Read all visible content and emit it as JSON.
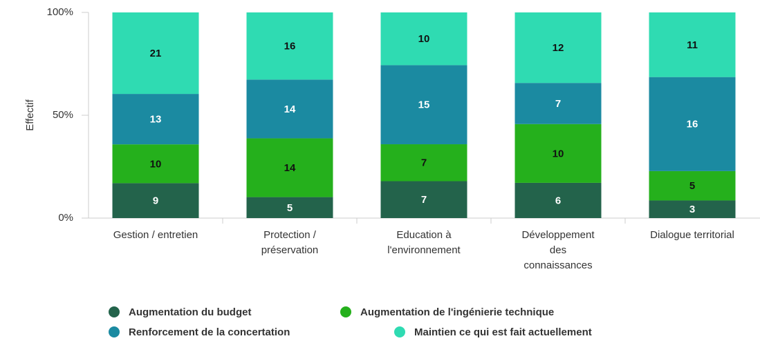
{
  "chart_data": {
    "type": "bar",
    "stacking": "percent",
    "y_label": "Effectif",
    "categories": [
      "Gestion / entretien",
      "Protection / préservation",
      "Education à l'environnement",
      "Développement des connaissances",
      "Dialogue territorial"
    ],
    "series": [
      {
        "name": "Augmentation du budget",
        "color": "#23634b",
        "label_color": "#ffffff",
        "values": [
          9,
          5,
          7,
          6,
          3
        ]
      },
      {
        "name": "Augmentation de l'ingénierie technique",
        "color": "#25b01c",
        "label_color": "#111111",
        "values": [
          10,
          14,
          7,
          10,
          5
        ]
      },
      {
        "name": "Renforcement de la concertation",
        "color": "#1b8aa1",
        "label_color": "#ffffff",
        "values": [
          13,
          14,
          15,
          7,
          16
        ]
      },
      {
        "name": "Maintien ce qui est fait actuellement",
        "color": "#2fdbb2",
        "label_color": "#111111",
        "values": [
          21,
          16,
          10,
          12,
          11
        ]
      }
    ],
    "ylim": [
      0,
      100
    ],
    "yticks": [
      {
        "value": 0,
        "label": "0%"
      },
      {
        "value": 50,
        "label": "50%"
      },
      {
        "value": 100,
        "label": "100%"
      }
    ],
    "grid": false,
    "legend": "bottom"
  }
}
